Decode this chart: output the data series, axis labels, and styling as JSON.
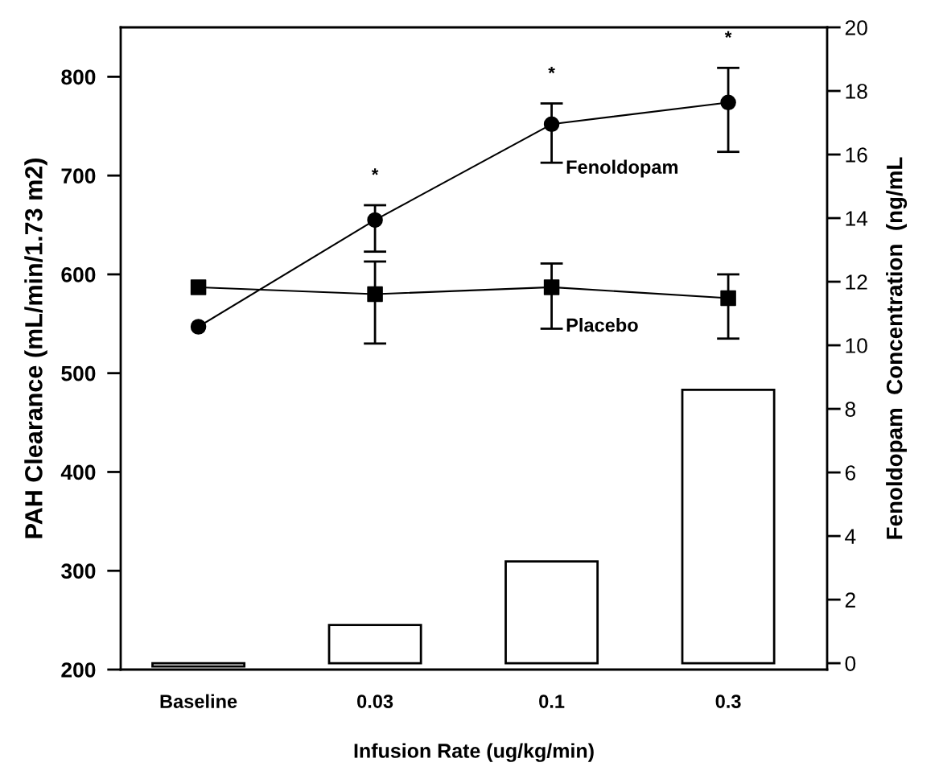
{
  "chart_data": {
    "type": "line",
    "xlabel": "Infusion Rate (ug/kg/min)",
    "ylabel": "PAH Clearance (mL/min/1.73 m2)",
    "y2label": "Fenoldopam  Concentration  (ng/mL",
    "categories": [
      "Baseline",
      "0.03",
      "0.1",
      "0.3"
    ],
    "series": [
      {
        "type": "bar",
        "axis": "y2",
        "color": "#ffffff",
        "values": [
          -0.1,
          1.2,
          3.2,
          8.6
        ]
      },
      {
        "name": "Fenoldopam",
        "color": "#000000",
        "marker": "circle",
        "values": [
          547,
          655,
          752,
          774
        ],
        "errors": [
          null,
          [
            623,
            670
          ],
          [
            713,
            773
          ],
          [
            724,
            809
          ]
        ]
      },
      {
        "name": "Placebo",
        "color": "#000000",
        "marker": "square",
        "values": [
          587,
          580,
          587,
          576
        ],
        "errors": [
          null,
          [
            530,
            613
          ],
          [
            545,
            611
          ],
          [
            535,
            600
          ]
        ]
      }
    ],
    "annotations": [
      {
        "text": "*",
        "x": "0.03",
        "y": 670
      },
      {
        "text": "*",
        "x": "0.1",
        "y": 773
      },
      {
        "text": "*",
        "x": "0.3",
        "y": 809
      }
    ],
    "ylim": [
      200,
      850
    ],
    "yticks": [
      200,
      300,
      400,
      500,
      600,
      700,
      800
    ],
    "y2lim": [
      -0.2,
      20
    ],
    "y2ticks": [
      0,
      2,
      4,
      6,
      8,
      10,
      12,
      14,
      16,
      18,
      20
    ],
    "grid": false,
    "legend": false,
    "line_style": "solid"
  }
}
